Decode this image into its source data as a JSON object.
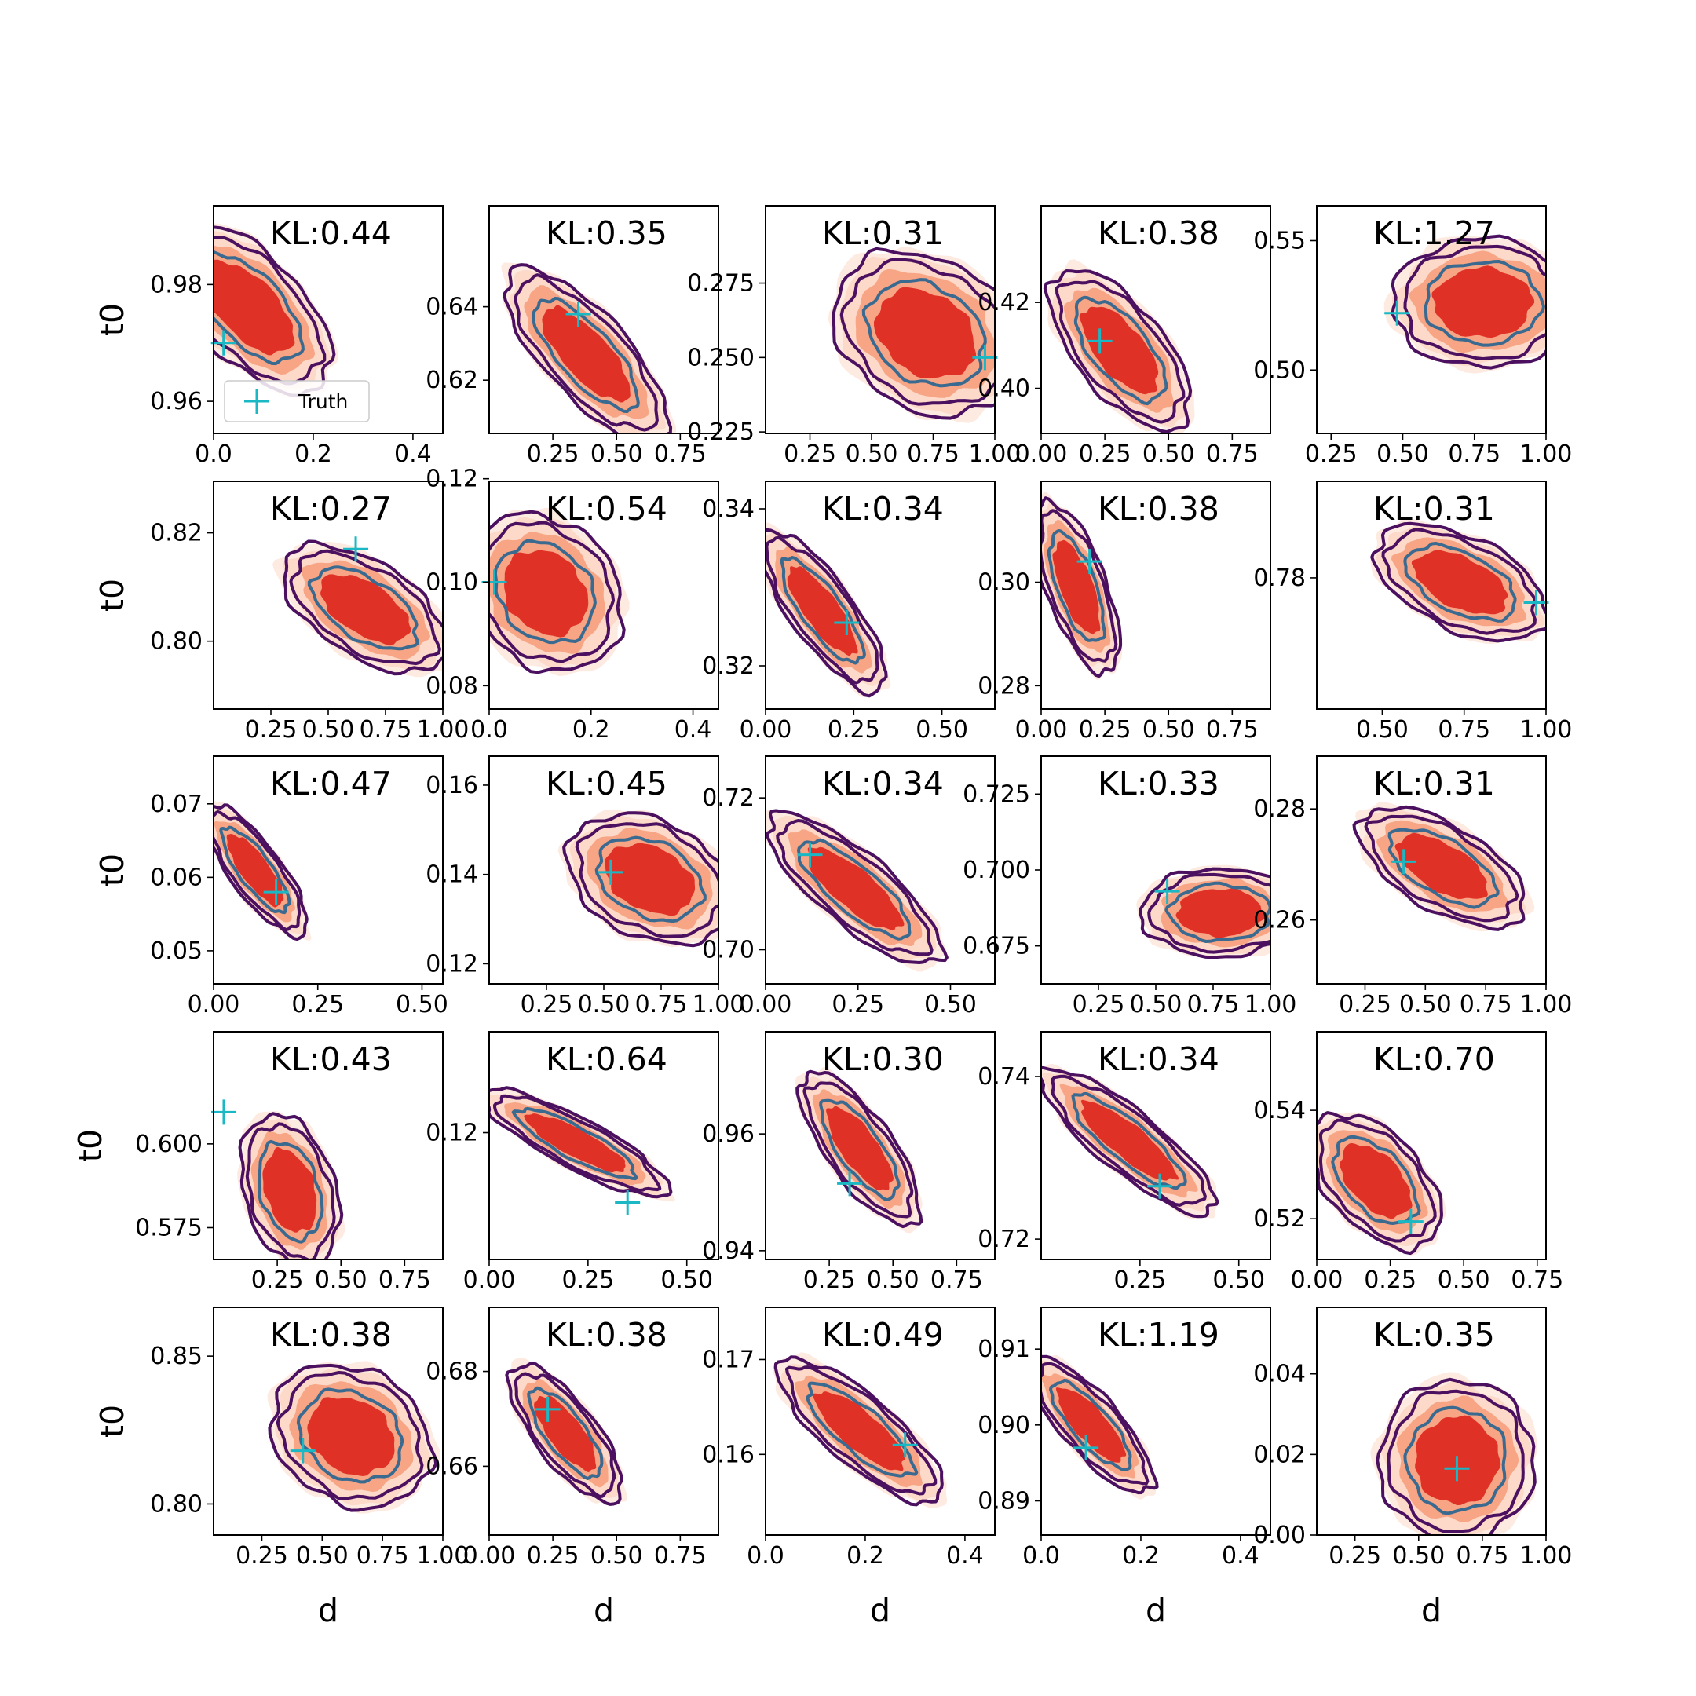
{
  "figure": {
    "rows": 5,
    "cols": 5,
    "legend_label": "Truth",
    "colors": {
      "filled_outer": "#fcd9c8",
      "filled_mid": "#f7a585",
      "filled_inner": "#e03127",
      "contour_outer": "#4b1060",
      "contour_inner": "#3a6a8f",
      "truth_marker": "#19b8c4"
    }
  },
  "chart_data": [
    {
      "type": "contour",
      "kl": "KL:0.44",
      "xlim": [
        0,
        0.46
      ],
      "ylim": [
        0.9545,
        0.9935
      ],
      "xticks": [
        0.0,
        0.2,
        0.4
      ],
      "xtick_labels": [
        "0.0",
        "0.2",
        "0.4"
      ],
      "yticks": [
        0.96,
        0.98
      ],
      "ytick_labels": [
        "0.96",
        "0.98"
      ],
      "center": [
        0.07,
        0.976
      ],
      "spread": [
        0.12,
        0.0105
      ],
      "corr": -0.6,
      "truth": [
        0.02,
        0.97
      ],
      "xlabel": "",
      "ylabel": "t0",
      "legend": true
    },
    {
      "type": "contour",
      "kl": "KL:0.35",
      "xlim": [
        0,
        0.9
      ],
      "ylim": [
        0.6055,
        0.6675
      ],
      "xticks": [
        0.25,
        0.5,
        0.75
      ],
      "xtick_labels": [
        "0.25",
        "0.50",
        "0.75"
      ],
      "yticks": [
        0.62,
        0.64
      ],
      "ytick_labels": [
        "0.62",
        "0.64"
      ],
      "center": [
        0.38,
        0.627
      ],
      "spread": [
        0.23,
        0.017
      ],
      "corr": -0.75,
      "truth": [
        0.35,
        0.638
      ],
      "xlabel": "",
      "ylabel": ""
    },
    {
      "type": "contour",
      "kl": "KL:0.31",
      "xlim": [
        0.07,
        1.0
      ],
      "ylim": [
        0.2245,
        0.301
      ],
      "xticks": [
        0.25,
        0.5,
        0.75,
        1.0
      ],
      "xtick_labels": [
        "0.25",
        "0.50",
        "0.75",
        "1.00"
      ],
      "yticks": [
        0.225,
        0.25,
        0.275
      ],
      "ytick_labels": [
        "0.225",
        "0.250",
        "0.275"
      ],
      "center": [
        0.72,
        0.258
      ],
      "spread": [
        0.27,
        0.02
      ],
      "corr": -0.25,
      "truth": [
        0.96,
        0.25
      ],
      "xlabel": "",
      "ylabel": ""
    },
    {
      "type": "contour",
      "kl": "KL:0.38",
      "xlim": [
        0,
        0.9
      ],
      "ylim": [
        0.3895,
        0.4425
      ],
      "xticks": [
        0.0,
        0.25,
        0.5,
        0.75
      ],
      "xtick_labels": [
        "0.00",
        "0.25",
        "0.50",
        "0.75"
      ],
      "yticks": [
        0.4,
        0.42
      ],
      "ytick_labels": [
        "0.40",
        "0.42"
      ],
      "center": [
        0.31,
        0.409
      ],
      "spread": [
        0.2,
        0.0135
      ],
      "corr": -0.65,
      "truth": [
        0.23,
        0.411
      ],
      "xlabel": "",
      "ylabel": ""
    },
    {
      "type": "contour",
      "kl": "KL:1.27",
      "xlim": [
        0.2,
        1.0
      ],
      "ylim": [
        0.4755,
        0.5635
      ],
      "xticks": [
        0.25,
        0.5,
        0.75,
        1.0
      ],
      "xtick_labels": [
        "0.25",
        "0.50",
        "0.75",
        "1.00"
      ],
      "yticks": [
        0.5,
        0.55
      ],
      "ytick_labels": [
        "0.50",
        "0.55"
      ],
      "center": [
        0.78,
        0.526
      ],
      "spread": [
        0.23,
        0.018
      ],
      "corr": 0.0,
      "truth": [
        0.48,
        0.522
      ],
      "xlabel": "",
      "ylabel": ""
    },
    {
      "type": "contour",
      "kl": "KL:0.27",
      "xlim": [
        0.0,
        1.0
      ],
      "ylim": [
        0.7875,
        0.8295
      ],
      "xticks": [
        0.25,
        0.5,
        0.75,
        1.0
      ],
      "xtick_labels": [
        "0.25",
        "0.50",
        "0.75",
        "1.00"
      ],
      "yticks": [
        0.8,
        0.82
      ],
      "ytick_labels": [
        "0.80",
        "0.82"
      ],
      "center": [
        0.66,
        0.806
      ],
      "spread": [
        0.26,
        0.0085
      ],
      "corr": -0.55,
      "truth": [
        0.62,
        0.817
      ],
      "xlabel": "",
      "ylabel": "t0"
    },
    {
      "type": "contour",
      "kl": "KL:0.54",
      "xlim": [
        0,
        0.45
      ],
      "ylim": [
        0.0755,
        0.1195
      ],
      "xticks": [
        0.0,
        0.2,
        0.4
      ],
      "xtick_labels": [
        "0.0",
        "0.2",
        "0.4"
      ],
      "yticks": [
        0.08,
        0.1,
        0.12
      ],
      "ytick_labels": [
        "0.08",
        "0.10",
        "0.12"
      ],
      "center": [
        0.11,
        0.098
      ],
      "spread": [
        0.11,
        0.011
      ],
      "corr": -0.2,
      "truth": [
        0.01,
        0.1
      ],
      "xlabel": "",
      "ylabel": ""
    },
    {
      "type": "contour",
      "kl": "KL:0.34",
      "xlim": [
        0,
        0.65
      ],
      "ylim": [
        0.3145,
        0.3435
      ],
      "xticks": [
        0.0,
        0.25,
        0.5
      ],
      "xtick_labels": [
        "0.00",
        "0.25",
        "0.50"
      ],
      "yticks": [
        0.32,
        0.34
      ],
      "ytick_labels": [
        "0.32",
        "0.34"
      ],
      "center": [
        0.16,
        0.327
      ],
      "spread": [
        0.13,
        0.0075
      ],
      "corr": -0.8,
      "truth": [
        0.23,
        0.3255
      ],
      "xlabel": "",
      "ylabel": ""
    },
    {
      "type": "contour",
      "kl": "KL:0.38",
      "xlim": [
        0,
        0.9
      ],
      "ylim": [
        0.2755,
        0.3195
      ],
      "xticks": [
        0.0,
        0.25,
        0.5,
        0.75
      ],
      "xtick_labels": [
        "0.00",
        "0.25",
        "0.50",
        "0.75"
      ],
      "yticks": [
        0.28,
        0.3
      ],
      "ytick_labels": [
        "0.28",
        "0.30"
      ],
      "center": [
        0.14,
        0.299
      ],
      "spread": [
        0.12,
        0.012
      ],
      "corr": -0.65,
      "truth": [
        0.19,
        0.304
      ],
      "xlabel": "",
      "ylabel": ""
    },
    {
      "type": "contour",
      "kl": "KL:0.31",
      "xlim": [
        0.3,
        1.0
      ],
      "ylim": [
        0.7535,
        0.7995
      ],
      "xticks": [
        0.5,
        0.75,
        1.0
      ],
      "xtick_labels": [
        "0.50",
        "0.75",
        "1.00"
      ],
      "yticks": [
        0.78
      ],
      "ytick_labels": [
        "0.78"
      ],
      "center": [
        0.74,
        0.779
      ],
      "spread": [
        0.19,
        0.0085
      ],
      "corr": -0.5,
      "truth": [
        0.97,
        0.775
      ],
      "xlabel": "",
      "ylabel": ""
    },
    {
      "type": "contour",
      "kl": "KL:0.47",
      "xlim": [
        0,
        0.55
      ],
      "ylim": [
        0.0455,
        0.0765
      ],
      "xticks": [
        0.0,
        0.25,
        0.5
      ],
      "xtick_labels": [
        "0.00",
        "0.25",
        "0.50"
      ],
      "yticks": [
        0.05,
        0.06,
        0.07
      ],
      "ytick_labels": [
        "0.05",
        "0.06",
        "0.07"
      ],
      "center": [
        0.1,
        0.061
      ],
      "spread": [
        0.09,
        0.0065
      ],
      "corr": -0.8,
      "truth": [
        0.15,
        0.058
      ],
      "xlabel": "",
      "ylabel": "t0"
    },
    {
      "type": "contour",
      "kl": "KL:0.45",
      "xlim": [
        0.0,
        1.0
      ],
      "ylim": [
        0.1155,
        0.1665
      ],
      "xticks": [
        0.25,
        0.5,
        0.75,
        1.0
      ],
      "xtick_labels": [
        "0.25",
        "0.50",
        "0.75",
        "1.00"
      ],
      "yticks": [
        0.12,
        0.14,
        0.16
      ],
      "ytick_labels": [
        "0.12",
        "0.14",
        "0.16"
      ],
      "center": [
        0.7,
        0.139
      ],
      "spread": [
        0.26,
        0.0105
      ],
      "corr": -0.3,
      "truth": [
        0.53,
        0.1405
      ],
      "xlabel": "",
      "ylabel": ""
    },
    {
      "type": "contour",
      "kl": "KL:0.34",
      "xlim": [
        0,
        0.62
      ],
      "ylim": [
        0.6955,
        0.7255
      ],
      "xticks": [
        0.0,
        0.25,
        0.5
      ],
      "xtick_labels": [
        "0.00",
        "0.25",
        "0.50"
      ],
      "yticks": [
        0.7,
        0.72
      ],
      "ytick_labels": [
        "0.70",
        "0.72"
      ],
      "center": [
        0.24,
        0.708
      ],
      "spread": [
        0.17,
        0.0072
      ],
      "corr": -0.8,
      "truth": [
        0.12,
        0.7125
      ],
      "xlabel": "",
      "ylabel": ""
    },
    {
      "type": "contour",
      "kl": "KL:0.33",
      "xlim": [
        0.0,
        1.0
      ],
      "ylim": [
        0.6625,
        0.7375
      ],
      "xticks": [
        0.25,
        0.5,
        0.75,
        1.0
      ],
      "xtick_labels": [
        "0.25",
        "0.50",
        "0.75",
        "1.00"
      ],
      "yticks": [
        0.675,
        0.7,
        0.725
      ],
      "ytick_labels": [
        "0.675",
        "0.700",
        "0.725"
      ],
      "center": [
        0.78,
        0.686
      ],
      "spread": [
        0.25,
        0.0105
      ],
      "corr": 0.0,
      "truth": [
        0.55,
        0.693
      ],
      "xlabel": "",
      "ylabel": ""
    },
    {
      "type": "contour",
      "kl": "KL:0.31",
      "xlim": [
        0.05,
        1.0
      ],
      "ylim": [
        0.2485,
        0.2895
      ],
      "xticks": [
        0.25,
        0.5,
        0.75,
        1.0
      ],
      "xtick_labels": [
        "0.25",
        "0.50",
        "0.75",
        "1.00"
      ],
      "yticks": [
        0.26,
        0.28
      ],
      "ytick_labels": [
        "0.26",
        "0.28"
      ],
      "center": [
        0.57,
        0.2695
      ],
      "spread": [
        0.25,
        0.0078
      ],
      "corr": -0.6,
      "truth": [
        0.41,
        0.2705
      ],
      "xlabel": "",
      "ylabel": ""
    },
    {
      "type": "contour",
      "kl": "KL:0.43",
      "xlim": [
        0,
        0.9
      ],
      "ylim": [
        0.5655,
        0.6335
      ],
      "xticks": [
        0.25,
        0.5,
        0.75
      ],
      "xtick_labels": [
        "0.25",
        "0.50",
        "0.75"
      ],
      "yticks": [
        0.575,
        0.6
      ],
      "ytick_labels": [
        "0.575",
        "0.600"
      ],
      "center": [
        0.3,
        0.586
      ],
      "spread": [
        0.14,
        0.0165
      ],
      "corr": -0.3,
      "truth": [
        0.04,
        0.6095
      ],
      "xlabel": "",
      "ylabel": "t0"
    },
    {
      "type": "contour",
      "kl": "KL:0.64",
      "xlim": [
        0,
        0.58
      ],
      "ylim": [
        0.0955,
        0.1395
      ],
      "xticks": [
        0.0,
        0.25,
        0.5
      ],
      "xtick_labels": [
        "0.00",
        "0.25",
        "0.50"
      ],
      "yticks": [
        0.12
      ],
      "ytick_labels": [
        "0.12"
      ],
      "center": [
        0.22,
        0.118
      ],
      "spread": [
        0.17,
        0.0075
      ],
      "corr": -0.85,
      "truth": [
        0.35,
        0.1065
      ],
      "xlabel": "",
      "ylabel": ""
    },
    {
      "type": "contour",
      "kl": "KL:0.30",
      "xlim": [
        0,
        0.9
      ],
      "ylim": [
        0.9385,
        0.9775
      ],
      "xticks": [
        0.25,
        0.5,
        0.75
      ],
      "xtick_labels": [
        "0.25",
        "0.50",
        "0.75"
      ],
      "yticks": [
        0.94,
        0.96
      ],
      "ytick_labels": [
        "0.94",
        "0.96"
      ],
      "center": [
        0.37,
        0.9575
      ],
      "spread": [
        0.17,
        0.0095
      ],
      "corr": -0.75,
      "truth": [
        0.33,
        0.9515
      ],
      "xlabel": "",
      "ylabel": ""
    },
    {
      "type": "contour",
      "kl": "KL:0.34",
      "xlim": [
        0,
        0.58
      ],
      "ylim": [
        0.7175,
        0.7455
      ],
      "xticks": [
        0.25,
        0.5
      ],
      "xtick_labels": [
        "0.25",
        "0.50"
      ],
      "yticks": [
        0.72,
        0.74
      ],
      "ytick_labels": [
        "0.72",
        "0.74"
      ],
      "center": [
        0.22,
        0.732
      ],
      "spread": [
        0.16,
        0.0065
      ],
      "corr": -0.85,
      "truth": [
        0.3,
        0.7265
      ],
      "xlabel": "",
      "ylabel": ""
    },
    {
      "type": "contour",
      "kl": "KL:0.70",
      "xlim": [
        0,
        0.78
      ],
      "ylim": [
        0.5125,
        0.5545
      ],
      "xticks": [
        0.0,
        0.25,
        0.5,
        0.75
      ],
      "xtick_labels": [
        "0.00",
        "0.25",
        "0.50",
        "0.75"
      ],
      "yticks": [
        0.52,
        0.54
      ],
      "ytick_labels": [
        "0.52",
        "0.54"
      ],
      "center": [
        0.2,
        0.527
      ],
      "spread": [
        0.16,
        0.009
      ],
      "corr": -0.5,
      "truth": [
        0.32,
        0.5195
      ],
      "xlabel": "",
      "ylabel": ""
    },
    {
      "type": "contour",
      "kl": "KL:0.38",
      "xlim": [
        0.05,
        1.0
      ],
      "ylim": [
        0.7895,
        0.8665
      ],
      "xticks": [
        0.25,
        0.5,
        0.75,
        1.0
      ],
      "xtick_labels": [
        "0.25",
        "0.50",
        "0.75",
        "1.00"
      ],
      "yticks": [
        0.8,
        0.85
      ],
      "ytick_labels": [
        "0.80",
        "0.85"
      ],
      "center": [
        0.62,
        0.823
      ],
      "spread": [
        0.24,
        0.0175
      ],
      "corr": -0.2,
      "truth": [
        0.42,
        0.818
      ],
      "xlabel": "d",
      "ylabel": "t0"
    },
    {
      "type": "contour",
      "kl": "KL:0.38",
      "xlim": [
        0,
        0.9
      ],
      "ylim": [
        0.6455,
        0.6935
      ],
      "xticks": [
        0.0,
        0.25,
        0.5,
        0.75
      ],
      "xtick_labels": [
        "0.00",
        "0.25",
        "0.50",
        "0.75"
      ],
      "yticks": [
        0.66,
        0.68
      ],
      "ytick_labels": [
        "0.66",
        "0.68"
      ],
      "center": [
        0.3,
        0.667
      ],
      "spread": [
        0.16,
        0.0105
      ],
      "corr": -0.75,
      "truth": [
        0.23,
        0.672
      ],
      "xlabel": "d",
      "ylabel": ""
    },
    {
      "type": "contour",
      "kl": "KL:0.49",
      "xlim": [
        0,
        0.46
      ],
      "ylim": [
        0.1515,
        0.1755
      ],
      "xticks": [
        0.0,
        0.2,
        0.4
      ],
      "xtick_labels": [
        "0.0",
        "0.2",
        "0.4"
      ],
      "yticks": [
        0.16,
        0.17
      ],
      "ytick_labels": [
        "0.16",
        "0.17"
      ],
      "center": [
        0.19,
        0.1625
      ],
      "spread": [
        0.12,
        0.0055
      ],
      "corr": -0.8,
      "truth": [
        0.28,
        0.161
      ],
      "xlabel": "d",
      "ylabel": ""
    },
    {
      "type": "contour",
      "kl": "KL:1.19",
      "xlim": [
        0,
        0.46
      ],
      "ylim": [
        0.8855,
        0.9155
      ],
      "xticks": [
        0.0,
        0.2,
        0.4
      ],
      "xtick_labels": [
        "0.0",
        "0.2",
        "0.4"
      ],
      "yticks": [
        0.89,
        0.9,
        0.91
      ],
      "ytick_labels": [
        "0.89",
        "0.90",
        "0.91"
      ],
      "center": [
        0.1,
        0.9
      ],
      "spread": [
        0.09,
        0.0065
      ],
      "corr": -0.8,
      "truth": [
        0.09,
        0.897
      ],
      "xlabel": "d",
      "ylabel": ""
    },
    {
      "type": "contour",
      "kl": "KL:0.35",
      "xlim": [
        0.1,
        1.0
      ],
      "ylim": [
        0.0,
        0.0565
      ],
      "xticks": [
        0.25,
        0.5,
        0.75,
        1.0
      ],
      "xtick_labels": [
        "0.25",
        "0.50",
        "0.75",
        "1.00"
      ],
      "yticks": [
        0.0,
        0.02,
        0.04
      ],
      "ytick_labels": [
        "0.00",
        "0.02",
        "0.04"
      ],
      "center": [
        0.65,
        0.0185
      ],
      "spread": [
        0.22,
        0.0145
      ],
      "corr": 0.0,
      "truth": [
        0.65,
        0.0165
      ],
      "xlabel": "d",
      "ylabel": ""
    }
  ]
}
